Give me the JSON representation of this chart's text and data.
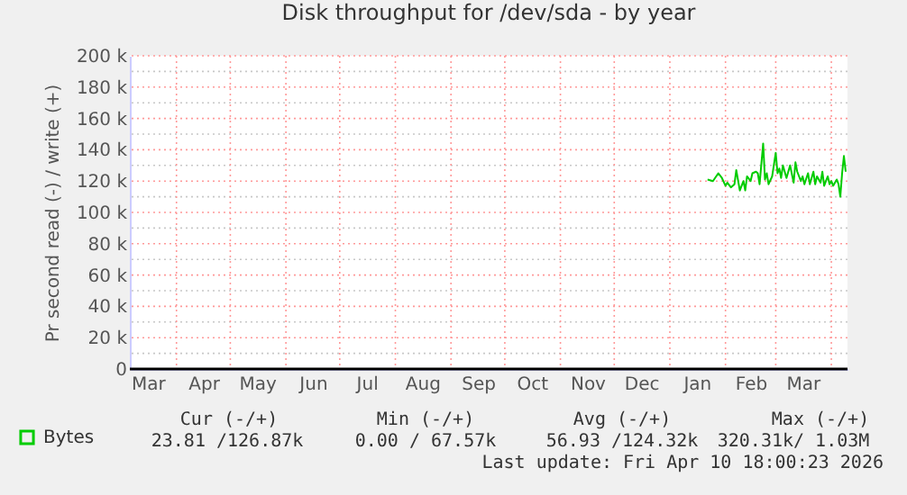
{
  "chart_data": {
    "type": "line",
    "title": "Disk throughput for /dev/sda - by year",
    "ylabel": "Pr second read (-) / write (+)",
    "x": [
      "2026-01-22",
      "2026-01-25",
      "2026-01-28",
      "2026-01-30",
      "2026-02-01",
      "2026-02-02",
      "2026-02-04",
      "2026-02-06",
      "2026-02-07",
      "2026-02-09",
      "2026-02-11",
      "2026-02-12",
      "2026-02-13",
      "2026-02-15",
      "2026-02-16",
      "2026-02-18",
      "2026-02-19",
      "2026-02-20",
      "2026-02-22",
      "2026-02-23",
      "2026-02-24",
      "2026-02-25",
      "2026-02-27",
      "2026-03-01",
      "2026-03-02",
      "2026-03-03",
      "2026-03-04",
      "2026-03-05",
      "2026-03-07",
      "2026-03-08",
      "2026-03-09",
      "2026-03-11",
      "2026-03-12",
      "2026-03-13",
      "2026-03-15",
      "2026-03-16",
      "2026-03-17",
      "2026-03-19",
      "2026-03-20",
      "2026-03-22",
      "2026-03-23",
      "2026-03-24",
      "2026-03-26",
      "2026-03-27",
      "2026-03-28",
      "2026-03-30",
      "2026-03-31",
      "2026-04-01",
      "2026-04-02",
      "2026-04-04",
      "2026-04-05",
      "2026-04-06",
      "2026-04-07",
      "2026-04-08",
      "2026-04-09"
    ],
    "series": [
      {
        "name": "Bytes",
        "color": "#00cc00",
        "values": [
          121000,
          120000,
          125000,
          122000,
          117000,
          119000,
          116000,
          118000,
          127000,
          114000,
          120000,
          114000,
          123000,
          120000,
          125000,
          126000,
          125000,
          118000,
          144000,
          121000,
          125000,
          118000,
          123000,
          138000,
          125000,
          128000,
          122000,
          130000,
          122000,
          126000,
          130000,
          119000,
          132000,
          126000,
          120000,
          123000,
          118000,
          125000,
          118000,
          126000,
          118000,
          123000,
          119000,
          126000,
          117000,
          123000,
          118000,
          120000,
          117000,
          121000,
          118000,
          110000,
          125000,
          136000,
          126000
        ]
      }
    ],
    "xlim": [
      "2025-03-06",
      "2026-04-10"
    ],
    "xticks": [
      {
        "value": "2025-03-16",
        "label": "Mar"
      },
      {
        "value": "2025-04-01",
        "label": null
      },
      {
        "value": "2025-04-16",
        "label": "Apr"
      },
      {
        "value": "2025-05-01",
        "label": null
      },
      {
        "value": "2025-05-16",
        "label": "May"
      },
      {
        "value": "2025-06-01",
        "label": null
      },
      {
        "value": "2025-06-16",
        "label": "Jun"
      },
      {
        "value": "2025-07-01",
        "label": null
      },
      {
        "value": "2025-07-16",
        "label": "Jul"
      },
      {
        "value": "2025-08-01",
        "label": null
      },
      {
        "value": "2025-08-16",
        "label": "Aug"
      },
      {
        "value": "2025-09-01",
        "label": null
      },
      {
        "value": "2025-09-16",
        "label": "Sep"
      },
      {
        "value": "2025-10-01",
        "label": null
      },
      {
        "value": "2025-10-16",
        "label": "Oct"
      },
      {
        "value": "2025-11-01",
        "label": null
      },
      {
        "value": "2025-11-16",
        "label": "Nov"
      },
      {
        "value": "2025-12-01",
        "label": null
      },
      {
        "value": "2025-12-16",
        "label": "Dec"
      },
      {
        "value": "2026-01-01",
        "label": null
      },
      {
        "value": "2026-01-16",
        "label": "Jan"
      },
      {
        "value": "2026-02-01",
        "label": null
      },
      {
        "value": "2026-02-15",
        "label": "Feb"
      },
      {
        "value": "2026-03-01",
        "label": null
      },
      {
        "value": "2026-03-16",
        "label": "Mar"
      },
      {
        "value": "2026-04-01",
        "label": null
      }
    ],
    "ylim": [
      0,
      200000
    ],
    "yticks": [
      0,
      {
        "value": 10000,
        "label": null
      },
      {
        "value": 20000,
        "label": "20 k"
      },
      {
        "value": 30000,
        "label": null
      },
      {
        "value": 40000,
        "label": "40 k"
      },
      {
        "value": 50000,
        "label": null
      },
      {
        "value": 60000,
        "label": "60 k"
      },
      {
        "value": 70000,
        "label": null
      },
      {
        "value": 80000,
        "label": "80 k"
      },
      {
        "value": 90000,
        "label": null
      },
      {
        "value": 100000,
        "label": "100 k"
      },
      {
        "value": 110000,
        "label": null
      },
      {
        "value": 120000,
        "label": "120 k"
      },
      {
        "value": 130000,
        "label": null
      },
      {
        "value": 140000,
        "label": "140 k"
      },
      {
        "value": 150000,
        "label": null
      },
      {
        "value": 160000,
        "label": "160 k"
      },
      {
        "value": 170000,
        "label": null
      },
      {
        "value": 180000,
        "label": "180 k"
      },
      {
        "value": 190000,
        "label": null
      },
      {
        "value": 200000,
        "label": "200 k"
      }
    ],
    "ref_lines": [
      {
        "axis": "y",
        "value": 0,
        "color": "#000000"
      }
    ],
    "grid": true,
    "legend": "bottom left",
    "marker": "none",
    "line_style": "solid",
    "annotations": [
      "Cur (-/+)",
      "Min (-/+)",
      "Avg (-/+)",
      "Max (-/+)",
      "23.81 /126.87k",
      "0.00 /  67.57k",
      "56.93 /124.32k",
      "320.31k/  1.03M",
      "Last update: Fri Apr 10 18:00:23 2026"
    ]
  }
}
